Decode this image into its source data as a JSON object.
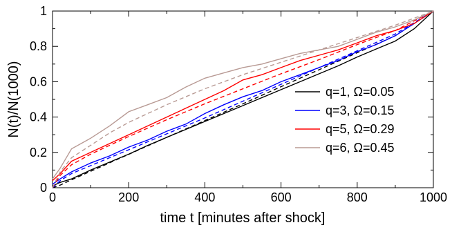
{
  "chart_data": {
    "type": "line",
    "xlabel": "time t [minutes after shock]",
    "ylabel": "N(t)/N(1000)",
    "xlim": [
      0,
      1000
    ],
    "ylim": [
      0,
      1
    ],
    "x_ticks": [
      0,
      200,
      400,
      600,
      800,
      1000
    ],
    "y_ticks": [
      0,
      0.2,
      0.4,
      0.6,
      0.8,
      1
    ],
    "x_tick_labels": [
      "0",
      "200",
      "400",
      "600",
      "800",
      "1000"
    ],
    "y_tick_labels": [
      "0",
      "0.2",
      "0.4",
      "0.6",
      "0.8",
      "1"
    ],
    "grid": false,
    "legend_position": "center-right",
    "series": [
      {
        "name": "q=1, Ω=0.05",
        "color": "#000000",
        "empirical": [
          [
            0,
            0.01
          ],
          [
            20,
            0.03
          ],
          [
            50,
            0.05
          ],
          [
            100,
            0.1
          ],
          [
            150,
            0.145
          ],
          [
            200,
            0.19
          ],
          [
            250,
            0.24
          ],
          [
            300,
            0.285
          ],
          [
            350,
            0.33
          ],
          [
            400,
            0.375
          ],
          [
            450,
            0.42
          ],
          [
            500,
            0.465
          ],
          [
            550,
            0.51
          ],
          [
            600,
            0.555
          ],
          [
            650,
            0.6
          ],
          [
            700,
            0.645
          ],
          [
            750,
            0.69
          ],
          [
            800,
            0.74
          ],
          [
            850,
            0.785
          ],
          [
            900,
            0.83
          ],
          [
            950,
            0.9
          ],
          [
            1000,
            1.0
          ]
        ],
        "model": [
          [
            0,
            0.0
          ],
          [
            20,
            0.015
          ],
          [
            50,
            0.045
          ],
          [
            100,
            0.093
          ],
          [
            150,
            0.141
          ],
          [
            200,
            0.189
          ],
          [
            300,
            0.285
          ],
          [
            400,
            0.38
          ],
          [
            500,
            0.475
          ],
          [
            600,
            0.572
          ],
          [
            700,
            0.668
          ],
          [
            800,
            0.764
          ],
          [
            900,
            0.86
          ],
          [
            1000,
            1.0
          ]
        ]
      },
      {
        "name": "q=3, Ω=0.15",
        "color": "#0000ff",
        "empirical": [
          [
            0,
            0.02
          ],
          [
            20,
            0.05
          ],
          [
            50,
            0.09
          ],
          [
            100,
            0.14
          ],
          [
            150,
            0.18
          ],
          [
            200,
            0.23
          ],
          [
            250,
            0.27
          ],
          [
            300,
            0.32
          ],
          [
            350,
            0.36
          ],
          [
            400,
            0.42
          ],
          [
            450,
            0.47
          ],
          [
            500,
            0.515
          ],
          [
            550,
            0.55
          ],
          [
            600,
            0.6
          ],
          [
            650,
            0.64
          ],
          [
            700,
            0.68
          ],
          [
            750,
            0.72
          ],
          [
            800,
            0.77
          ],
          [
            850,
            0.81
          ],
          [
            900,
            0.86
          ],
          [
            950,
            0.93
          ],
          [
            1000,
            1.0
          ]
        ],
        "model": [
          [
            0,
            0.0
          ],
          [
            20,
            0.04
          ],
          [
            50,
            0.08
          ],
          [
            100,
            0.125
          ],
          [
            150,
            0.17
          ],
          [
            200,
            0.215
          ],
          [
            300,
            0.305
          ],
          [
            400,
            0.395
          ],
          [
            500,
            0.49
          ],
          [
            600,
            0.585
          ],
          [
            700,
            0.68
          ],
          [
            800,
            0.775
          ],
          [
            900,
            0.87
          ],
          [
            1000,
            1.0
          ]
        ]
      },
      {
        "name": "q=5, Ω=0.29",
        "color": "#ff0000",
        "empirical": [
          [
            0,
            0.04
          ],
          [
            20,
            0.08
          ],
          [
            50,
            0.15
          ],
          [
            100,
            0.2
          ],
          [
            150,
            0.25
          ],
          [
            200,
            0.3
          ],
          [
            250,
            0.35
          ],
          [
            300,
            0.4
          ],
          [
            350,
            0.45
          ],
          [
            400,
            0.5
          ],
          [
            450,
            0.55
          ],
          [
            500,
            0.61
          ],
          [
            550,
            0.64
          ],
          [
            600,
            0.68
          ],
          [
            650,
            0.72
          ],
          [
            700,
            0.75
          ],
          [
            750,
            0.78
          ],
          [
            800,
            0.82
          ],
          [
            850,
            0.86
          ],
          [
            900,
            0.89
          ],
          [
            950,
            0.93
          ],
          [
            1000,
            1.0
          ]
        ],
        "model": [
          [
            0,
            0.0
          ],
          [
            20,
            0.07
          ],
          [
            50,
            0.13
          ],
          [
            100,
            0.19
          ],
          [
            150,
            0.24
          ],
          [
            200,
            0.29
          ],
          [
            300,
            0.385
          ],
          [
            400,
            0.475
          ],
          [
            500,
            0.56
          ],
          [
            600,
            0.645
          ],
          [
            700,
            0.725
          ],
          [
            800,
            0.81
          ],
          [
            900,
            0.89
          ],
          [
            1000,
            1.0
          ]
        ]
      },
      {
        "name": "q=6, Ω=0.45",
        "color": "#b89a94",
        "empirical": [
          [
            0,
            0.05
          ],
          [
            20,
            0.11
          ],
          [
            50,
            0.22
          ],
          [
            100,
            0.28
          ],
          [
            150,
            0.35
          ],
          [
            200,
            0.43
          ],
          [
            250,
            0.47
          ],
          [
            300,
            0.51
          ],
          [
            350,
            0.57
          ],
          [
            400,
            0.62
          ],
          [
            450,
            0.65
          ],
          [
            500,
            0.68
          ],
          [
            550,
            0.7
          ],
          [
            600,
            0.73
          ],
          [
            650,
            0.76
          ],
          [
            700,
            0.78
          ],
          [
            750,
            0.8
          ],
          [
            800,
            0.84
          ],
          [
            850,
            0.88
          ],
          [
            900,
            0.91
          ],
          [
            950,
            0.95
          ],
          [
            1000,
            1.0
          ]
        ],
        "model": [
          [
            0,
            0.0
          ],
          [
            20,
            0.09
          ],
          [
            50,
            0.17
          ],
          [
            100,
            0.24
          ],
          [
            150,
            0.31
          ],
          [
            200,
            0.37
          ],
          [
            300,
            0.47
          ],
          [
            400,
            0.56
          ],
          [
            500,
            0.64
          ],
          [
            600,
            0.71
          ],
          [
            700,
            0.78
          ],
          [
            800,
            0.85
          ],
          [
            900,
            0.92
          ],
          [
            1000,
            1.0
          ]
        ]
      }
    ]
  }
}
